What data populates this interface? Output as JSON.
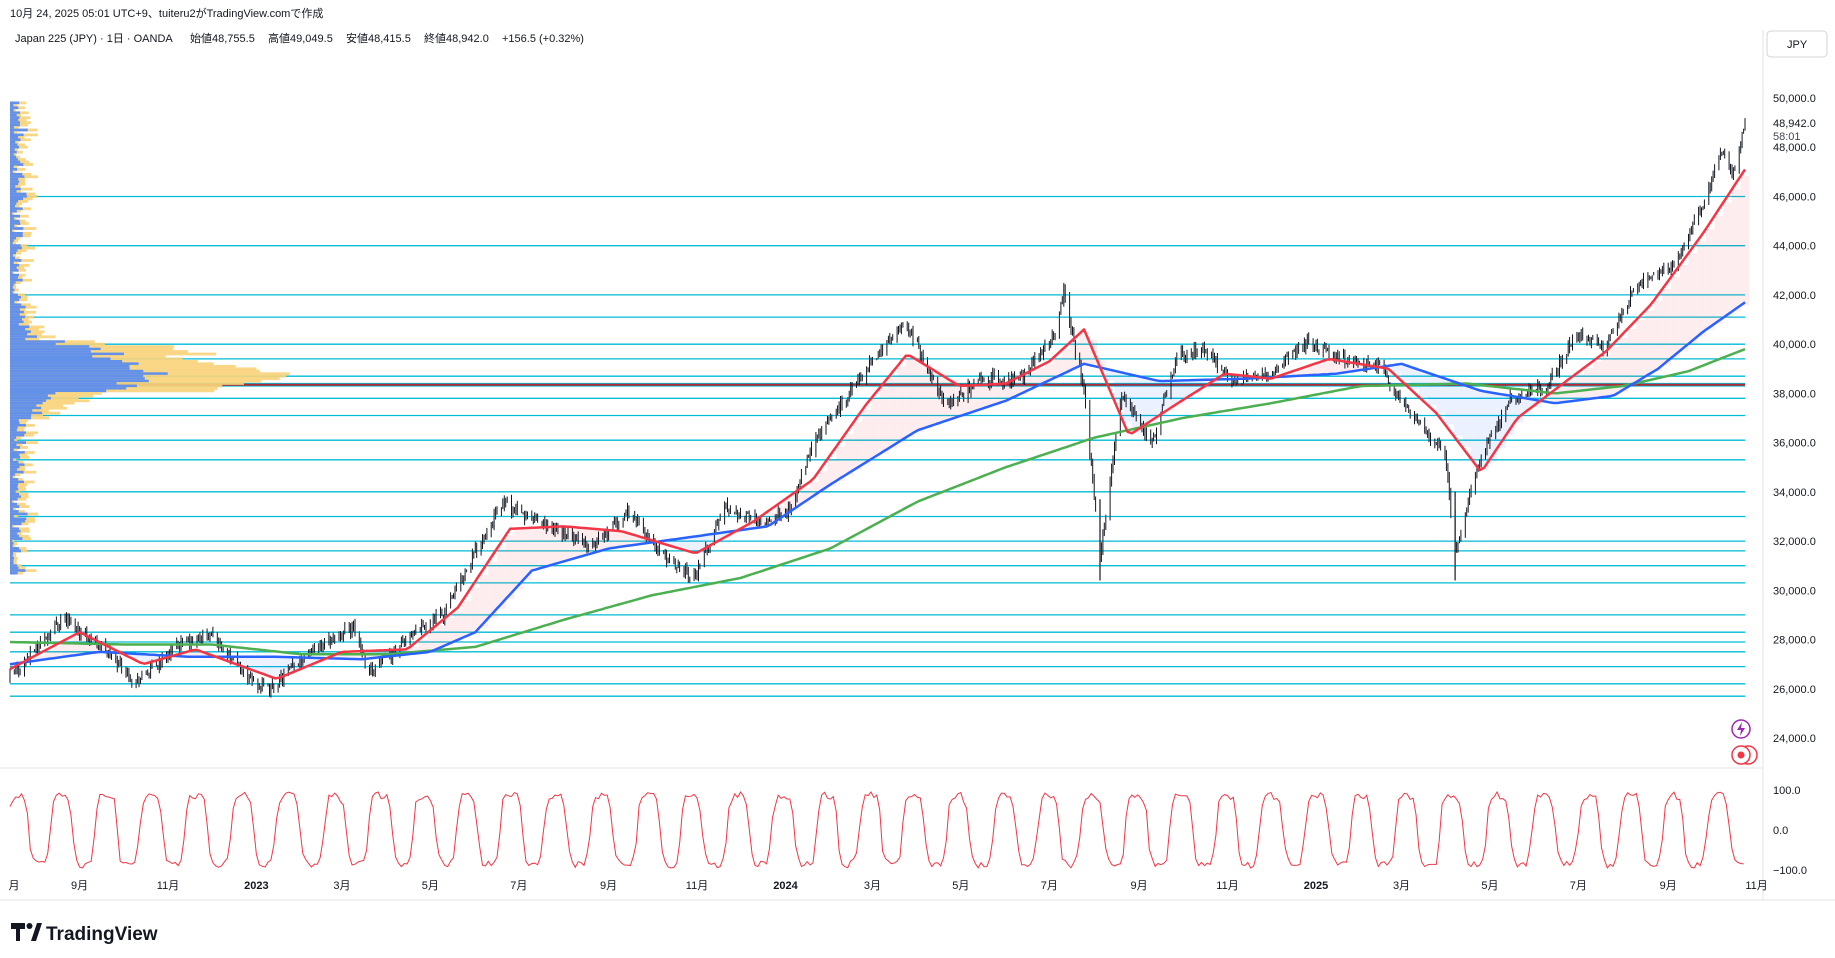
{
  "header": {
    "snapshot_text": "10月 24, 2025 05:01 UTC+9、tuiteru2がTradingView.comで作成",
    "symbol_line": "Japan 225 (JPY) · 1日 · OANDA",
    "ohlc": [
      {
        "label": "始値",
        "value": "48,755.5"
      },
      {
        "label": "高値",
        "value": "49,049.5"
      },
      {
        "label": "安値",
        "value": "48,415.5"
      },
      {
        "label": "終値",
        "value": "48,942.0"
      }
    ],
    "change": "+156.5 (+0.32%)",
    "currency": "JPY"
  },
  "price_scale": {
    "current_price": "48,942.0",
    "countdown": "58:01",
    "ticks": [
      "50,000.0",
      "48,000.0",
      "46,000.0",
      "44,000.0",
      "42,000.0",
      "40,000.0",
      "38,000.0",
      "36,000.0",
      "34,000.0",
      "32,000.0",
      "30,000.0",
      "28,000.0",
      "26,000.0",
      "24,000.0"
    ]
  },
  "oscillator_scale": {
    "ticks": [
      "100.0",
      "0.0",
      "−100.0"
    ]
  },
  "time_axis": {
    "ticks": [
      "月",
      "9月",
      "11月",
      "2023",
      "3月",
      "5月",
      "7月",
      "9月",
      "11月",
      "2024",
      "3月",
      "5月",
      "7月",
      "9月",
      "11月",
      "2025",
      "3月",
      "5月",
      "7月",
      "9月",
      "11月"
    ]
  },
  "footer": {
    "brand": "TradingView"
  },
  "colors": {
    "candle": "#131722",
    "ma_fast": "#f23645",
    "ma_mid": "#2962ff",
    "ma_slow": "#4caf50",
    "hline": "#00bcd4",
    "poc": "#b22833",
    "vp_blue": "#5b8def",
    "vp_yellow": "#f8d37a",
    "oscillator": "#f23645"
  },
  "chart_data": {
    "type": "candlestick",
    "symbol": "Japan 225 (JPY)",
    "timeframe": "1日",
    "x_range": [
      "2022-08",
      "2025-10"
    ],
    "ylim": [
      23000,
      51000
    ],
    "price_path": [
      [
        "2022-07-15",
        26400
      ],
      [
        "2022-08-20",
        28900
      ],
      [
        "2022-09-15",
        27800
      ],
      [
        "2022-10-10",
        26300
      ],
      [
        "2022-11-10",
        27800
      ],
      [
        "2022-12-01",
        28200
      ],
      [
        "2022-12-25",
        26500
      ],
      [
        "2023-01-10",
        25900
      ],
      [
        "2023-02-05",
        27500
      ],
      [
        "2023-03-09",
        28500
      ],
      [
        "2023-03-20",
        26700
      ],
      [
        "2023-04-15",
        28000
      ],
      [
        "2023-05-10",
        29000
      ],
      [
        "2023-05-31",
        31500
      ],
      [
        "2023-06-20",
        33600
      ],
      [
        "2023-07-05",
        33000
      ],
      [
        "2023-07-25",
        32500
      ],
      [
        "2023-08-20",
        31800
      ],
      [
        "2023-09-15",
        33200
      ],
      [
        "2023-10-10",
        31300
      ],
      [
        "2023-10-31",
        30600
      ],
      [
        "2023-11-20",
        33400
      ],
      [
        "2023-12-15",
        32800
      ],
      [
        "2024-01-05",
        33300
      ],
      [
        "2024-01-20",
        36000
      ],
      [
        "2024-02-20",
        38500
      ],
      [
        "2024-03-10",
        40000
      ],
      [
        "2024-03-25",
        40800
      ],
      [
        "2024-04-20",
        37500
      ],
      [
        "2024-05-15",
        38600
      ],
      [
        "2024-06-10",
        38500
      ],
      [
        "2024-07-05",
        40500
      ],
      [
        "2024-07-11",
        42200
      ],
      [
        "2024-07-25",
        38000
      ],
      [
        "2024-08-05",
        31300
      ],
      [
        "2024-08-20",
        38000
      ],
      [
        "2024-09-10",
        36000
      ],
      [
        "2024-09-27",
        39500
      ],
      [
        "2024-10-15",
        39800
      ],
      [
        "2024-11-05",
        38500
      ],
      [
        "2024-12-01",
        38800
      ],
      [
        "2024-12-26",
        40100
      ],
      [
        "2025-01-20",
        39400
      ],
      [
        "2025-02-15",
        39000
      ],
      [
        "2025-03-10",
        37000
      ],
      [
        "2025-03-31",
        35600
      ],
      [
        "2025-04-07",
        31500
      ],
      [
        "2025-04-25",
        35500
      ],
      [
        "2025-05-15",
        37800
      ],
      [
        "2025-06-10",
        38300
      ],
      [
        "2025-06-30",
        40500
      ],
      [
        "2025-07-20",
        39800
      ],
      [
        "2025-08-10",
        42500
      ],
      [
        "2025-08-25",
        42800
      ],
      [
        "2025-09-05",
        43200
      ],
      [
        "2025-09-25",
        45700
      ],
      [
        "2025-10-08",
        47800
      ],
      [
        "2025-10-15",
        46800
      ],
      [
        "2025-10-24",
        48942
      ]
    ],
    "last_bar": {
      "open": 48755.5,
      "high": 49049.5,
      "low": 48415.5,
      "close": 48942.0,
      "change": 156.5,
      "change_pct": 0.32
    },
    "horizontal_levels": [
      46000,
      44000,
      42000,
      41100,
      40000,
      39400,
      38700,
      38400,
      38300,
      37800,
      37100,
      36100,
      35300,
      34000,
      33000,
      32000,
      31600,
      31000,
      30300,
      29000,
      28300,
      27900,
      27500,
      26900,
      26200,
      25700
    ],
    "poc_level": 38350,
    "ma_fast_path": [
      [
        "2022-07-15",
        26800
      ],
      [
        "2022-09-01",
        28300
      ],
      [
        "2022-10-15",
        27000
      ],
      [
        "2022-11-20",
        27600
      ],
      [
        "2023-01-15",
        26400
      ],
      [
        "2023-03-01",
        27500
      ],
      [
        "2023-04-15",
        27600
      ],
      [
        "2023-05-20",
        29300
      ],
      [
        "2023-06-25",
        32500
      ],
      [
        "2023-08-01",
        32600
      ],
      [
        "2023-09-10",
        32400
      ],
      [
        "2023-10-31",
        31500
      ],
      [
        "2023-12-10",
        32800
      ],
      [
        "2024-01-20",
        34500
      ],
      [
        "2024-02-25",
        37500
      ],
      [
        "2024-03-25",
        39600
      ],
      [
        "2024-04-30",
        38300
      ],
      [
        "2024-06-01",
        38400
      ],
      [
        "2024-07-01",
        39300
      ],
      [
        "2024-07-25",
        40600
      ],
      [
        "2024-08-25",
        36300
      ],
      [
        "2024-09-25",
        37500
      ],
      [
        "2024-10-30",
        38800
      ],
      [
        "2024-12-01",
        38600
      ],
      [
        "2025-01-10",
        39400
      ],
      [
        "2025-02-20",
        39000
      ],
      [
        "2025-03-25",
        37200
      ],
      [
        "2025-04-25",
        34800
      ],
      [
        "2025-05-20",
        37000
      ],
      [
        "2025-06-25",
        38600
      ],
      [
        "2025-07-20",
        39700
      ],
      [
        "2025-08-20",
        41600
      ],
      [
        "2025-09-25",
        44500
      ],
      [
        "2025-10-24",
        47100
      ]
    ],
    "ma_mid_path": [
      [
        "2022-07-15",
        27000
      ],
      [
        "2022-09-15",
        27500
      ],
      [
        "2022-11-15",
        27300
      ],
      [
        "2023-01-15",
        27300
      ],
      [
        "2023-03-15",
        27200
      ],
      [
        "2023-05-01",
        27500
      ],
      [
        "2023-06-01",
        28300
      ],
      [
        "2023-07-10",
        30800
      ],
      [
        "2023-09-01",
        31700
      ],
      [
        "2023-11-01",
        32200
      ],
      [
        "2023-12-20",
        32600
      ],
      [
        "2024-02-01",
        34300
      ],
      [
        "2024-04-01",
        36500
      ],
      [
        "2024-06-01",
        37700
      ],
      [
        "2024-07-25",
        39200
      ],
      [
        "2024-09-15",
        38500
      ],
      [
        "2024-11-15",
        38600
      ],
      [
        "2025-01-15",
        38800
      ],
      [
        "2025-03-01",
        39200
      ],
      [
        "2025-04-25",
        38100
      ],
      [
        "2025-06-15",
        37600
      ],
      [
        "2025-07-25",
        37900
      ],
      [
        "2025-08-25",
        39000
      ],
      [
        "2025-09-25",
        40500
      ],
      [
        "2025-10-24",
        41700
      ]
    ],
    "ma_slow_path": [
      [
        "2022-07-15",
        27900
      ],
      [
        "2022-10-01",
        27800
      ],
      [
        "2022-12-01",
        27800
      ],
      [
        "2023-02-01",
        27400
      ],
      [
        "2023-04-01",
        27400
      ],
      [
        "2023-06-01",
        27700
      ],
      [
        "2023-08-01",
        28800
      ],
      [
        "2023-10-01",
        29800
      ],
      [
        "2023-12-01",
        30500
      ],
      [
        "2024-02-01",
        31700
      ],
      [
        "2024-04-01",
        33600
      ],
      [
        "2024-06-01",
        35000
      ],
      [
        "2024-08-01",
        36200
      ],
      [
        "2024-10-01",
        37000
      ],
      [
        "2024-12-01",
        37600
      ],
      [
        "2025-02-01",
        38300
      ],
      [
        "2025-04-15",
        38400
      ],
      [
        "2025-06-15",
        38000
      ],
      [
        "2025-08-01",
        38300
      ],
      [
        "2025-09-15",
        38900
      ],
      [
        "2025-10-24",
        39800
      ]
    ],
    "oscillator": {
      "ylim": [
        -100,
        100
      ],
      "ticks": [
        100,
        0,
        -100
      ]
    }
  }
}
